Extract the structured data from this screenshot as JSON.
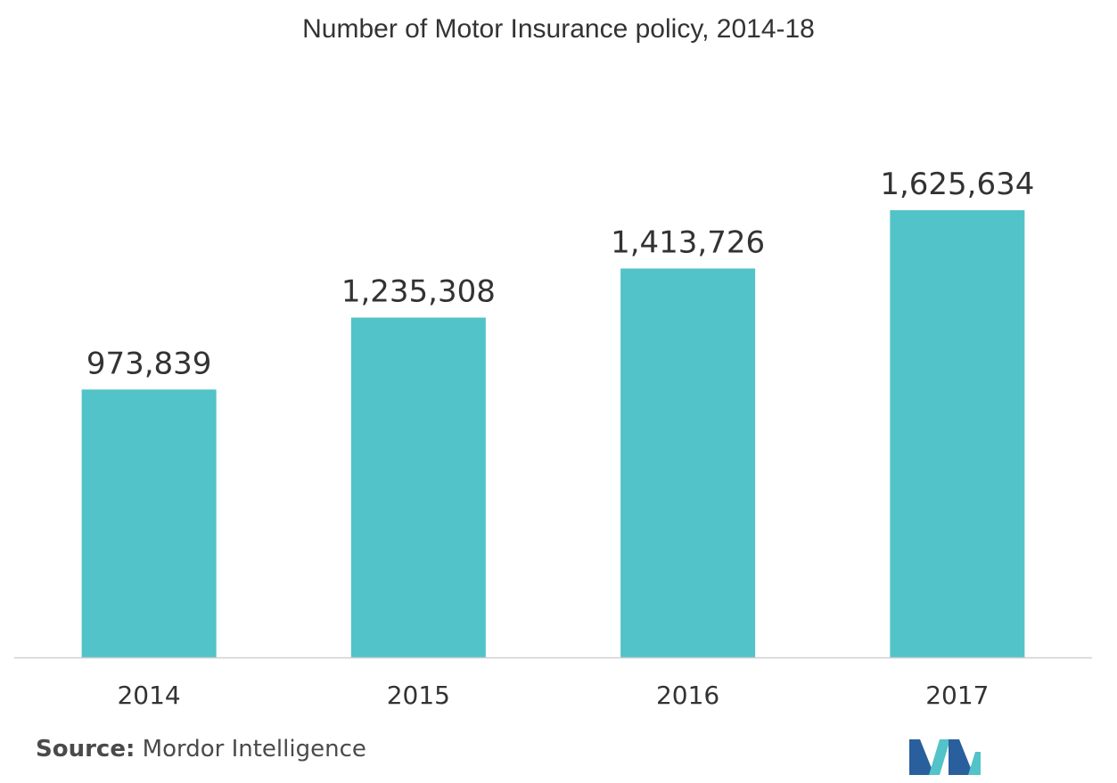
{
  "chart_data": {
    "type": "bar",
    "title": "Number of Motor Insurance policy, 2014-18",
    "categories": [
      "2014",
      "2015",
      "2016",
      "2017"
    ],
    "values": [
      973839,
      1235308,
      1413726,
      1625634
    ],
    "value_labels": [
      "973,839",
      "1,235,308",
      "1,413,726",
      "1,625,634"
    ],
    "xlabel": "",
    "ylabel": "",
    "ylim": [
      0,
      1800000
    ],
    "grid": false,
    "legend": "none",
    "bar_color": "#52c3c8",
    "axis_color": "#d0d0d0"
  },
  "source": {
    "label": "Source:",
    "text": "Mordor Intelligence"
  },
  "logo": {
    "icon": "mordor-intelligence-logo",
    "colors": [
      "#2a5f9e",
      "#52c3c8"
    ]
  }
}
